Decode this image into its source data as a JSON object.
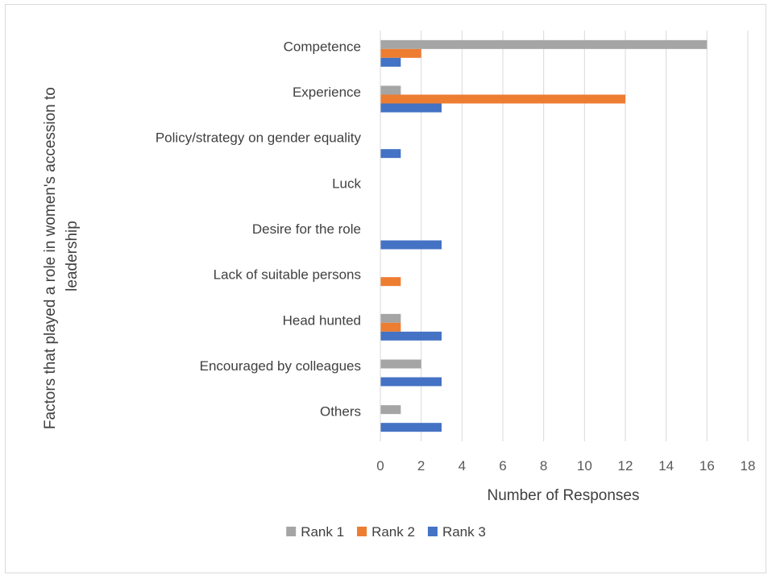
{
  "chart_data": {
    "type": "bar",
    "orientation": "horizontal",
    "categories": [
      "Competence",
      "Experience",
      "Policy/strategy on gender equality",
      "Luck",
      "Desire for the role",
      "Lack of suitable persons",
      "Head hunted",
      "Encouraged by colleagues",
      "Others"
    ],
    "series": [
      {
        "name": "Rank 1",
        "color": "#a5a5a5",
        "values": [
          16,
          1,
          0,
          0,
          0,
          0,
          1,
          2,
          1
        ]
      },
      {
        "name": "Rank 2",
        "color": "#ed7d31",
        "values": [
          2,
          12,
          0,
          0,
          0,
          1,
          1,
          0,
          0
        ]
      },
      {
        "name": "Rank 3",
        "color": "#4472c4",
        "values": [
          1,
          3,
          1,
          0,
          3,
          0,
          3,
          3,
          3
        ]
      }
    ],
    "xlabel": "Number of Responses",
    "ylabel": "Factors that played a role in women's accession to leadership",
    "xlim": [
      0,
      18
    ],
    "xticks": [
      "0",
      "2",
      "4",
      "6",
      "8",
      "10",
      "12",
      "14",
      "16",
      "18"
    ],
    "grid": "vertical",
    "legend_position": "bottom"
  }
}
